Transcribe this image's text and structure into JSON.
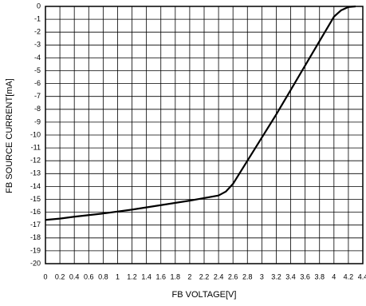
{
  "chart_data": {
    "type": "line",
    "xlabel": "FB VOLTAGE[V]",
    "ylabel": "FB SOURCE CURRENT[mA]",
    "series": [
      {
        "color": "#000000",
        "x": [
          0,
          0.2,
          0.4,
          0.8,
          1.2,
          1.6,
          2.0,
          2.4,
          2.5,
          2.6,
          2.7,
          2.8,
          3.0,
          3.2,
          3.4,
          3.6,
          3.8,
          4.0,
          4.1,
          4.2,
          4.3
        ],
        "values": [
          -16.6,
          -16.5,
          -16.35,
          -16.1,
          -15.8,
          -15.45,
          -15.1,
          -14.7,
          -14.4,
          -13.8,
          -12.9,
          -12.0,
          -10.2,
          -8.4,
          -6.5,
          -4.6,
          -2.7,
          -0.8,
          -0.3,
          -0.05,
          0
        ]
      }
    ],
    "xlim": [
      0,
      4.4
    ],
    "xticks": [
      0,
      0.2,
      0.4,
      0.6,
      0.8,
      1,
      1.2,
      1.4,
      1.6,
      1.8,
      2,
      2.2,
      2.4,
      2.6,
      2.8,
      3,
      3.2,
      3.4,
      3.6,
      3.8,
      4,
      4.2,
      4.4
    ],
    "ylim": [
      -20,
      0
    ],
    "yticks": [
      0,
      -1,
      -2,
      -3,
      -4,
      -5,
      -6,
      -7,
      -8,
      -9,
      -10,
      -11,
      -12,
      -13,
      -14,
      -15,
      -16,
      -17,
      -18,
      -19,
      -20
    ],
    "grid": true
  }
}
